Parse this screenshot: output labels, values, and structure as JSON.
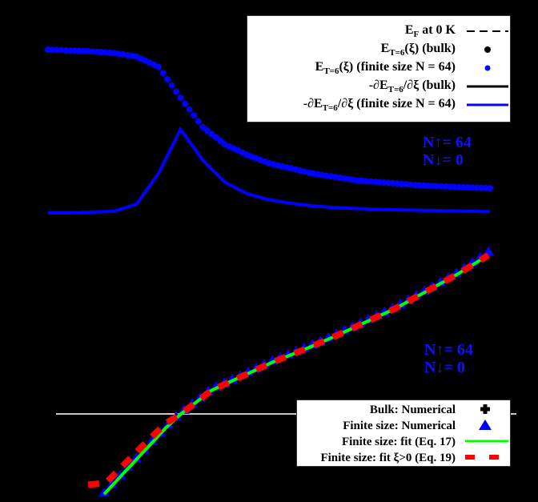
{
  "chart_data": [
    {
      "type": "line",
      "panel": "top",
      "title": "",
      "xlabel": "",
      "ylabel": "",
      "background": "#000000",
      "grid": false,
      "legend_position": "upper right",
      "legend": [
        {
          "label_main": "E",
          "label_sub": "F",
          "label_rest": " at 0 K",
          "style": "dashed-line",
          "color": "#000000"
        },
        {
          "label_main": "E",
          "label_sub": "T=6",
          "label_rest": "(ξ) (bulk)",
          "style": "dot",
          "color": "#000000"
        },
        {
          "label_main": "E",
          "label_sub": "T=6",
          "label_rest": "(ξ) (finite size N = 64)",
          "style": "dot",
          "color": "#0000ff"
        },
        {
          "label_main": "-∂E",
          "label_sub": "T=6",
          "label_rest": "/∂ξ (bulk)",
          "style": "solid-line",
          "color": "#000000"
        },
        {
          "label_main": "-∂E",
          "label_sub": "T=6",
          "label_rest": "/∂ξ (finite size N = 64)",
          "style": "solid-line",
          "color": "#0000ff"
        }
      ],
      "annotation": {
        "line1": "N↑= 64",
        "line2": "N↓= 0",
        "color": "#1010ff"
      },
      "x": [
        0.0,
        0.05,
        0.1,
        0.15,
        0.2,
        0.25,
        0.3,
        0.35,
        0.4,
        0.45,
        0.5,
        0.55,
        0.6,
        0.65,
        0.7,
        0.75,
        0.8,
        0.85,
        0.9,
        0.95,
        1.0
      ],
      "series": [
        {
          "name": "E_T=6(ξ) (finite size N = 64)",
          "style": "dots",
          "color": "#0000ff",
          "values": [
            1.0,
            0.995,
            0.99,
            0.98,
            0.96,
            0.9,
            0.72,
            0.55,
            0.45,
            0.39,
            0.34,
            0.31,
            0.28,
            0.26,
            0.24,
            0.23,
            0.22,
            0.21,
            0.205,
            0.2,
            0.195
          ]
        },
        {
          "name": "-∂E_T=6/∂ξ (finite size N = 64)",
          "style": "line",
          "color": "#0000ff",
          "values": [
            0.0,
            0.0,
            0.01,
            0.02,
            0.1,
            0.45,
            0.95,
            0.6,
            0.35,
            0.22,
            0.15,
            0.11,
            0.08,
            0.06,
            0.05,
            0.04,
            0.035,
            0.03,
            0.025,
            0.02,
            0.015
          ]
        }
      ]
    },
    {
      "type": "line",
      "panel": "bottom",
      "title": "",
      "xlabel": "",
      "ylabel": "",
      "background": "#000000",
      "grid": false,
      "zero_line": true,
      "legend_position": "lower right",
      "legend": [
        {
          "label": "Bulk: Numerical",
          "style": "plus-marker",
          "color": "#000000"
        },
        {
          "label": "Finite size: Numerical",
          "style": "triangle",
          "color": "#0000ff"
        },
        {
          "label": "Finite size: fit (Eq. 17)",
          "style": "solid-line",
          "color": "#00ff00"
        },
        {
          "label": "Finite size: fit ξ>0 (Eq. 19)",
          "style": "dashed-line",
          "color": "#ff0000"
        }
      ],
      "annotation": {
        "line1": "N↑= 64",
        "line2": "N↓= 0",
        "color": "#1010ff"
      },
      "x": [
        -0.25,
        -0.15,
        -0.05,
        0.0,
        0.1,
        0.2,
        0.3,
        0.4,
        0.5,
        0.6,
        0.7,
        0.8,
        0.9,
        1.0
      ],
      "series": [
        {
          "name": "Finite size: Numerical",
          "style": "triangles",
          "color": "#0000ff",
          "values": [
            -0.85,
            -0.5,
            -0.15,
            0.0,
            0.25,
            0.4,
            0.55,
            0.68,
            0.82,
            0.97,
            1.12,
            1.3,
            1.48,
            1.7
          ]
        },
        {
          "name": "Finite size: fit (Eq. 17)",
          "style": "line",
          "color": "#00ff00",
          "values": [
            -0.85,
            -0.5,
            -0.15,
            0.0,
            0.25,
            0.4,
            0.55,
            0.68,
            0.82,
            0.97,
            1.12,
            1.3,
            1.48,
            1.68
          ]
        },
        {
          "name": "Finite size: fit ξ>0 (Eq. 19)",
          "style": "dashed",
          "color": "#ff0000",
          "values": [
            -0.75,
            -0.42,
            -0.1,
            0.0,
            0.25,
            0.4,
            0.55,
            0.68,
            0.82,
            0.97,
            1.12,
            1.3,
            1.48,
            1.68
          ]
        }
      ]
    }
  ]
}
